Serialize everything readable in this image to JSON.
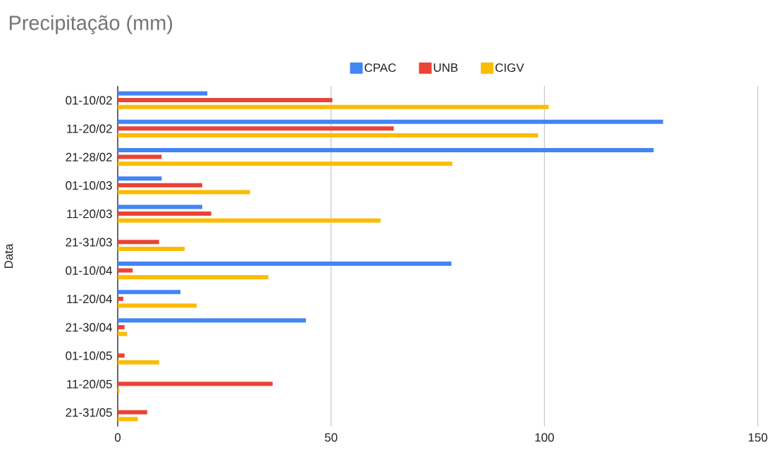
{
  "chart_data": {
    "type": "bar",
    "orientation": "horizontal",
    "title": "Precipitação (mm)",
    "ylabel": "Data",
    "categories": [
      "01-10/02",
      "11-20/02",
      "21-28/02",
      "01-10/03",
      "11-20/03",
      "21-31/03",
      "01-10/04",
      "11-20/04",
      "21-30/04",
      "01-10/05",
      "11-20/05",
      "21-31/05"
    ],
    "series": [
      {
        "name": "CPAC",
        "color": "#4285f4",
        "values": [
          21.0,
          127.8,
          125.6,
          10.3,
          19.8,
          null,
          78.2,
          14.7,
          44.1,
          null,
          null,
          null
        ]
      },
      {
        "name": "UNB",
        "color": "#ea4335",
        "values": [
          50.3,
          64.7,
          10.3,
          19.8,
          21.9,
          9.7,
          3.5,
          1.3,
          1.6,
          1.6,
          36.3,
          6.9
        ]
      },
      {
        "name": "CIGV",
        "color": "#fbbc04",
        "values": [
          101.0,
          98.5,
          78.4,
          31.0,
          61.6,
          15.7,
          35.3,
          18.5,
          2.2,
          9.7,
          0.4,
          4.7
        ]
      }
    ],
    "xlim": [
      0,
      150
    ],
    "xticks": [
      0,
      50,
      100,
      150
    ],
    "grid": "x",
    "legend": "top"
  }
}
